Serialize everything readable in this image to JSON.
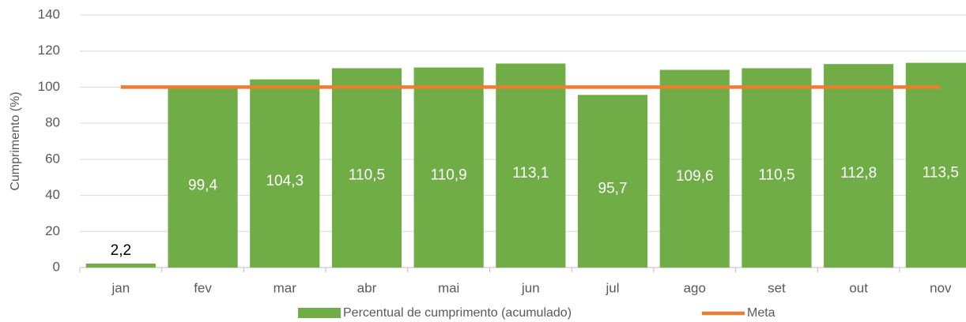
{
  "chart_data": {
    "type": "bar",
    "y_label": "Cumprimento (%)",
    "categories": [
      "jan",
      "fev",
      "mar",
      "abr",
      "mai",
      "jun",
      "jul",
      "ago",
      "set",
      "out",
      "nov"
    ],
    "series": [
      {
        "name": "Percentual de cumprimento (acumulado)",
        "type": "bar",
        "color": "#70ad47",
        "values": [
          2.2,
          99.4,
          104.3,
          110.5,
          110.9,
          113.1,
          95.7,
          109.6,
          110.5,
          112.8,
          113.5
        ],
        "value_labels": [
          "2,2",
          "99,4",
          "104,3",
          "110,5",
          "110,9",
          "113,1",
          "95,7",
          "109,6",
          "110,5",
          "112,8",
          "113,5"
        ]
      },
      {
        "name": "Meta",
        "type": "line",
        "color": "#ed7d31",
        "values": [
          100,
          100,
          100,
          100,
          100,
          100,
          100,
          100,
          100,
          100,
          100
        ]
      }
    ],
    "ylim": [
      0,
      140
    ],
    "yticks": [
      0,
      20,
      40,
      60,
      80,
      100,
      120,
      140
    ],
    "grid": true,
    "legend": "bottom"
  }
}
